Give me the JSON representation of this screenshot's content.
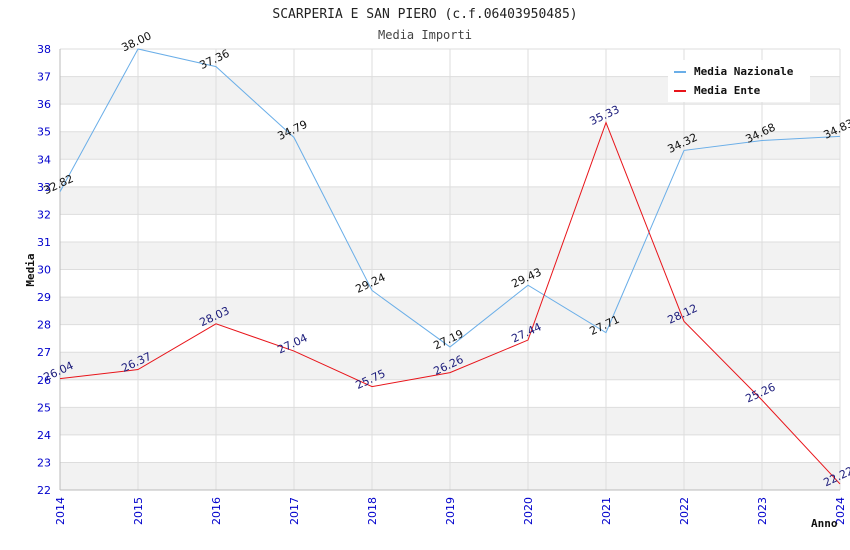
{
  "chart_data": {
    "type": "line",
    "title": "SCARPERIA E SAN PIERO (c.f.06403950485)",
    "subtitle": "Media Importi",
    "xlabel": "Anno",
    "ylabel": "Media",
    "x": [
      "2014",
      "2015",
      "2016",
      "2017",
      "2018",
      "2019",
      "2020",
      "2021",
      "2022",
      "2023",
      "2024"
    ],
    "ylim": [
      22,
      38
    ],
    "y_ticks": [
      22,
      23,
      24,
      25,
      26,
      27,
      28,
      29,
      30,
      31,
      32,
      33,
      34,
      35,
      36,
      37,
      38
    ],
    "grid": true,
    "legend_position": "top-right",
    "series": [
      {
        "name": "Media Nazionale",
        "color": "#6aaee8",
        "label_color": "#111111",
        "values": [
          32.82,
          38.0,
          37.36,
          34.79,
          29.24,
          27.19,
          29.43,
          27.71,
          34.32,
          34.68,
          34.83
        ],
        "labels": [
          "32.82",
          "38.00",
          "37.36",
          "34.79",
          "29.24",
          "27.19",
          "29.43",
          "27.71",
          "34.32",
          "34.68",
          "34.83"
        ]
      },
      {
        "name": "Media Ente",
        "color": "#e8141a",
        "label_color": "#1a1a7a",
        "values": [
          26.04,
          26.37,
          28.03,
          27.04,
          25.75,
          26.26,
          27.44,
          35.33,
          28.12,
          25.26,
          22.22
        ],
        "labels": [
          "26.04",
          "26.37",
          "28.03",
          "27.04",
          "25.75",
          "26.26",
          "27.44",
          "35.33",
          "28.12",
          "25.26",
          "22.22"
        ]
      }
    ]
  }
}
